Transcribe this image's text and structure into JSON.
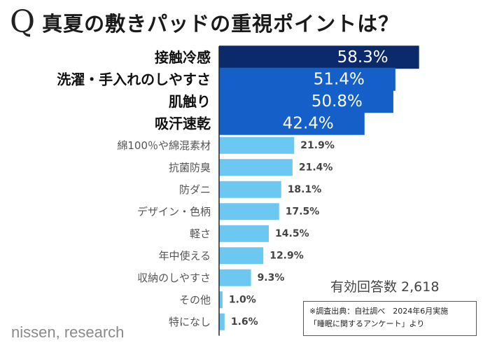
{
  "title": {
    "q_mark": "Q",
    "text": "真夏の敷きパッドの重視ポイントは？"
  },
  "chart_data": {
    "type": "bar",
    "orientation": "horizontal",
    "title": "真夏の敷きパッドの重視ポイントは？",
    "unit": "%",
    "categories": [
      "接触冷感",
      "洗濯・手入れのしやすさ",
      "肌触り",
      "吸汗速乾",
      "綿100％や綿混素材",
      "抗菌防臭",
      "防ダニ",
      "デザイン・色柄",
      "軽さ",
      "年中使える",
      "収納のしやすさ",
      "その他",
      "特になし"
    ],
    "values": [
      58.3,
      51.4,
      50.8,
      42.4,
      21.9,
      21.4,
      18.1,
      17.5,
      14.5,
      12.9,
      9.3,
      1.0,
      1.6
    ],
    "value_labels": [
      "58.3%",
      "51.4%",
      "50.8%",
      "42.4%",
      "21.9%",
      "21.4%",
      "18.1%",
      "17.5%",
      "14.5%",
      "12.9%",
      "9.3%",
      "1.0%",
      "1.6%"
    ],
    "highlight_top": 4,
    "xlim": [
      0,
      100
    ],
    "colors": {
      "top1": "#0a2a6b",
      "top": "#1560c8",
      "other": "#6cc8f0",
      "axis": "#222222",
      "label_strong": "#111111",
      "label_muted": "#555555",
      "value_muted": "#444444"
    }
  },
  "respondents": "有効回答数 2,618",
  "footnote": {
    "line1": "※調査出典：自社調べ　2024年6月実施",
    "line2": "「睡眠に関するアンケート」より"
  },
  "brand": "nissen, research"
}
